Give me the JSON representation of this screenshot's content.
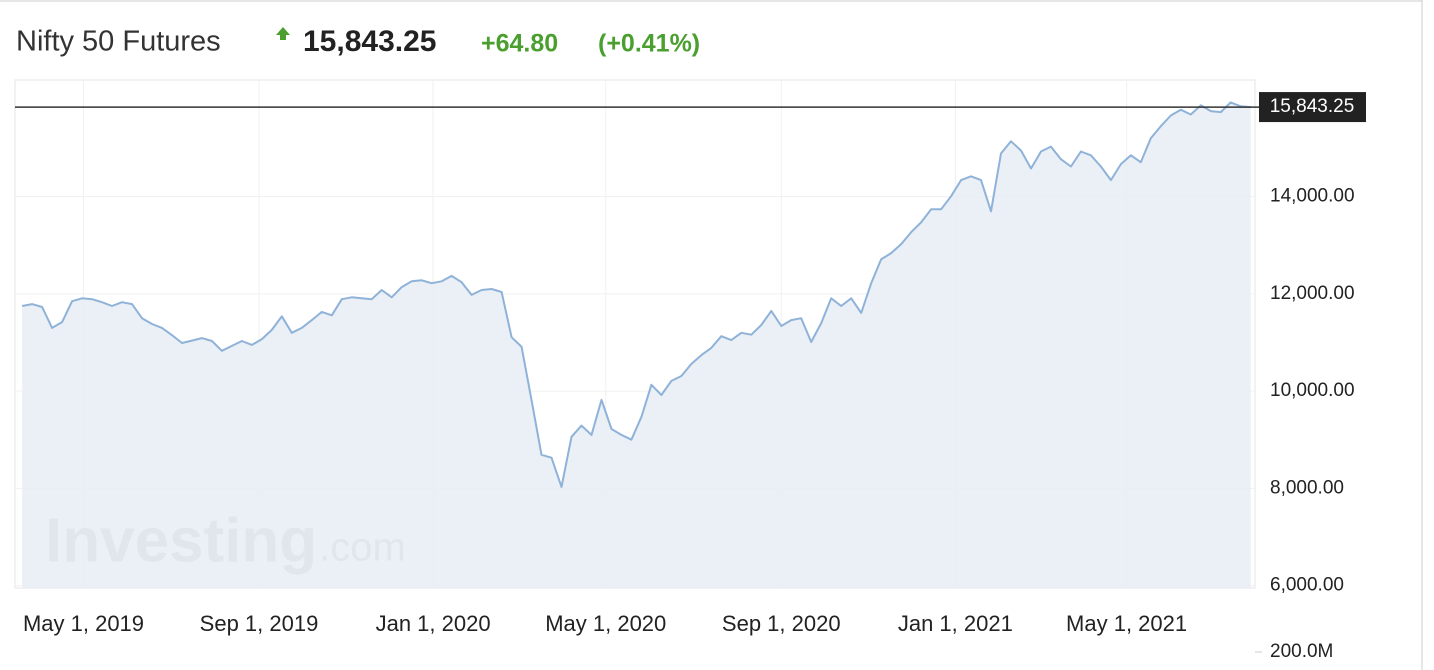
{
  "chart_data": {
    "type": "area",
    "title": "Nifty 50 Futures",
    "current_price": {
      "value": 15843.25,
      "label": "15,843.25"
    },
    "change": "+64.80",
    "change_percent": "(+0.41%)",
    "watermark_brand": "Investing",
    "watermark_suffix": ".com",
    "color": "#8fb2d8",
    "fill_color": "#e8edf5",
    "change_color": "#4a9f2f",
    "grid": true,
    "xlim": [
      "2019-03-14",
      "2021-07-30"
    ],
    "ylim": [
      5950,
      16400
    ],
    "xticks": [
      {
        "value": "2019-05-01",
        "label": "May 1, 2019"
      },
      {
        "value": "2019-09-01",
        "label": "Sep 1, 2019"
      },
      {
        "value": "2020-01-01",
        "label": "Jan 1, 2020"
      },
      {
        "value": "2020-05-01",
        "label": "May 1, 2020"
      },
      {
        "value": "2020-09-01",
        "label": "Sep 1, 2020"
      },
      {
        "value": "2021-01-01",
        "label": "Jan 1, 2021"
      },
      {
        "value": "2021-05-01",
        "label": "May 1, 2021"
      }
    ],
    "yticks": [
      {
        "value": 6000,
        "label": "6,000.00"
      },
      {
        "value": 8000,
        "label": "8,000.00"
      },
      {
        "value": 10000,
        "label": "10,000.00"
      },
      {
        "value": 12000,
        "label": "12,000.00"
      },
      {
        "value": 14000,
        "label": "14,000.00"
      }
    ],
    "volume_ticks": [
      {
        "value": 200000000,
        "label": "200.0M"
      }
    ],
    "x": [
      "2019-03-19",
      "2019-03-26",
      "2019-04-02",
      "2019-04-09",
      "2019-04-16",
      "2019-04-23",
      "2019-04-30",
      "2019-05-07",
      "2019-05-14",
      "2019-05-21",
      "2019-05-28",
      "2019-06-04",
      "2019-06-11",
      "2019-06-18",
      "2019-06-25",
      "2019-07-02",
      "2019-07-09",
      "2019-07-16",
      "2019-07-23",
      "2019-07-30",
      "2019-08-06",
      "2019-08-13",
      "2019-08-20",
      "2019-08-27",
      "2019-09-03",
      "2019-09-10",
      "2019-09-17",
      "2019-09-24",
      "2019-10-01",
      "2019-10-08",
      "2019-10-15",
      "2019-10-22",
      "2019-10-29",
      "2019-11-05",
      "2019-11-12",
      "2019-11-19",
      "2019-11-26",
      "2019-12-03",
      "2019-12-10",
      "2019-12-17",
      "2019-12-24",
      "2019-12-31",
      "2020-01-07",
      "2020-01-14",
      "2020-01-21",
      "2020-01-28",
      "2020-02-04",
      "2020-02-11",
      "2020-02-18",
      "2020-02-25",
      "2020-03-03",
      "2020-03-10",
      "2020-03-17",
      "2020-03-24",
      "2020-03-31",
      "2020-04-07",
      "2020-04-14",
      "2020-04-21",
      "2020-04-28",
      "2020-05-05",
      "2020-05-12",
      "2020-05-19",
      "2020-05-26",
      "2020-06-02",
      "2020-06-09",
      "2020-06-16",
      "2020-06-23",
      "2020-06-30",
      "2020-07-07",
      "2020-07-14",
      "2020-07-21",
      "2020-07-28",
      "2020-08-04",
      "2020-08-11",
      "2020-08-18",
      "2020-08-25",
      "2020-09-01",
      "2020-09-08",
      "2020-09-15",
      "2020-09-22",
      "2020-09-29",
      "2020-10-06",
      "2020-10-13",
      "2020-10-20",
      "2020-10-27",
      "2020-11-03",
      "2020-11-10",
      "2020-11-17",
      "2020-11-24",
      "2020-12-01",
      "2020-12-08",
      "2020-12-15",
      "2020-12-22",
      "2020-12-29",
      "2021-01-05",
      "2021-01-12",
      "2021-01-19",
      "2021-01-26",
      "2021-02-02",
      "2021-02-09",
      "2021-02-16",
      "2021-02-23",
      "2021-03-02",
      "2021-03-09",
      "2021-03-16",
      "2021-03-23",
      "2021-03-30",
      "2021-04-06",
      "2021-04-13",
      "2021-04-20",
      "2021-04-27",
      "2021-05-04",
      "2021-05-11",
      "2021-05-18",
      "2021-05-25",
      "2021-06-01",
      "2021-06-08",
      "2021-06-15",
      "2021-06-22",
      "2021-06-29",
      "2021-07-06",
      "2021-07-13",
      "2021-07-20",
      "2021-07-27"
    ],
    "values": [
      11750,
      11790,
      11730,
      11300,
      11420,
      11850,
      11910,
      11890,
      11830,
      11750,
      11830,
      11790,
      11500,
      11380,
      11300,
      11150,
      10990,
      11040,
      11090,
      11030,
      10830,
      10930,
      11030,
      10950,
      11070,
      11260,
      11540,
      11200,
      11300,
      11460,
      11630,
      11560,
      11890,
      11930,
      11910,
      11890,
      12080,
      11930,
      12140,
      12260,
      12280,
      12220,
      12260,
      12370,
      12240,
      11980,
      12080,
      12100,
      12040,
      11110,
      10910,
      9820,
      8690,
      8630,
      8030,
      9060,
      9290,
      9100,
      9820,
      9220,
      9100,
      9000,
      9470,
      10130,
      9920,
      10210,
      10310,
      10560,
      10740,
      10890,
      11130,
      11050,
      11200,
      11160,
      11360,
      11650,
      11340,
      11460,
      11500,
      11010,
      11400,
      11910,
      11750,
      11910,
      11610,
      12220,
      12710,
      12840,
      13020,
      13270,
      13470,
      13740,
      13740,
      14010,
      14340,
      14420,
      14340,
      13700,
      14890,
      15140,
      14950,
      14580,
      14930,
      15030,
      14770,
      14620,
      14930,
      14850,
      14620,
      14340,
      14670,
      14850,
      14710,
      15200,
      15450,
      15670,
      15790,
      15690,
      15880,
      15760,
      15740,
      15940,
      15860,
      15843.25
    ]
  }
}
